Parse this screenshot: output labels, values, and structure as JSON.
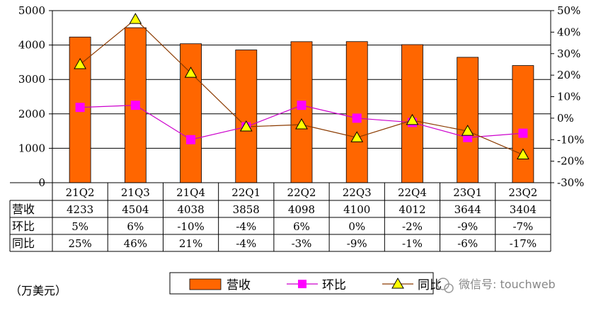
{
  "chart_data": {
    "type": "bar",
    "categories": [
      "21Q2",
      "21Q3",
      "21Q4",
      "22Q1",
      "22Q2",
      "22Q3",
      "22Q4",
      "23Q1",
      "23Q2"
    ],
    "series": [
      {
        "name": "营收",
        "type": "bar",
        "axis": "left",
        "color": "#FF6600",
        "values": [
          4233,
          4504,
          4038,
          3858,
          4098,
          4100,
          4012,
          3644,
          3404
        ]
      },
      {
        "name": "环比",
        "type": "line",
        "axis": "right",
        "color": "#CC00CC",
        "marker": "square",
        "marker_color": "#FF00FF",
        "values": [
          5,
          6,
          -10,
          -4,
          6,
          0,
          -2,
          -9,
          -7
        ]
      },
      {
        "name": "同比",
        "type": "line",
        "axis": "right",
        "color": "#8B3A00",
        "marker": "triangle",
        "marker_color": "#FFFF00",
        "values": [
          25,
          46,
          21,
          -4,
          -3,
          -9,
          -1,
          -6,
          -17
        ]
      }
    ],
    "y_left": {
      "ylim": [
        0,
        5000
      ],
      "ticks": [
        "0",
        "1000",
        "2000",
        "3000",
        "4000",
        "5000"
      ]
    },
    "y_right": {
      "ylim": [
        -30,
        50
      ],
      "ticks": [
        "-30%",
        "-20%",
        "-10%",
        "0%",
        "10%",
        "20%",
        "30%",
        "40%",
        "50%"
      ]
    },
    "grid": true,
    "legend": {
      "placement": "bottom",
      "items": [
        "营收",
        "环比",
        "同比"
      ]
    },
    "table": {
      "rows": [
        {
          "label": "营收",
          "cells": [
            "4233",
            "4504",
            "4038",
            "3858",
            "4098",
            "4100",
            "4012",
            "3644",
            "3404"
          ]
        },
        {
          "label": "环比",
          "cells": [
            "5%",
            "6%",
            "-10%",
            "-4%",
            "6%",
            "0%",
            "-2%",
            "-9%",
            "-7%"
          ]
        },
        {
          "label": "同比",
          "cells": [
            "25%",
            "46%",
            "21%",
            "-4%",
            "-3%",
            "-9%",
            "-1%",
            "-6%",
            "-17%"
          ]
        }
      ]
    },
    "unit_note": "（万美元）",
    "watermark": "微信号: touchweb"
  }
}
